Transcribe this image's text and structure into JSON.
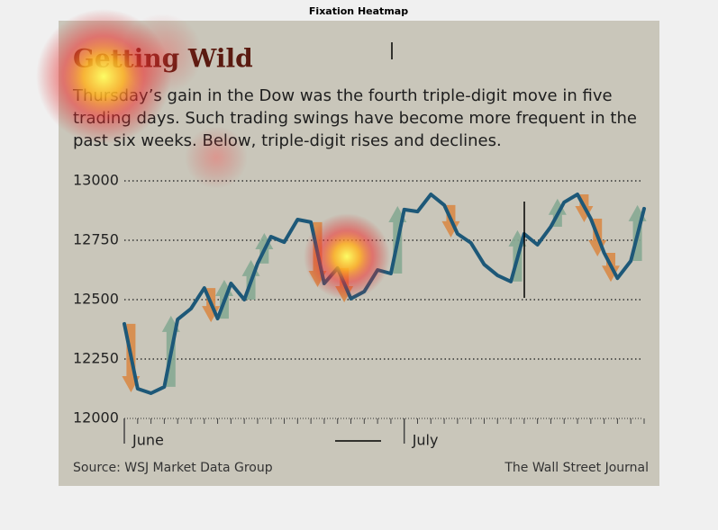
{
  "page_title": "Fixation Heatmap",
  "chart_data": {
    "type": "line",
    "title": "Getting Wild",
    "subtitle": [
      "Thursday’s gain in the Dow was the fourth triple-digit move in five",
      "trading days. Such trading swings have become more frequent in the",
      "past six weeks. Below, triple-digit rises and declines."
    ],
    "source": "Source: WSJ Market Data Group",
    "publisher": "The Wall Street Journal",
    "categories": [
      "June",
      null,
      null,
      null,
      null,
      null,
      null,
      null,
      null,
      null,
      null,
      null,
      null,
      null,
      null,
      null,
      null,
      null,
      null,
      null,
      null,
      "July",
      null,
      null,
      null,
      null,
      null,
      null,
      null,
      null,
      null,
      null,
      null,
      null,
      null,
      null,
      null,
      null,
      null,
      null
    ],
    "values": [
      12398,
      12125,
      12106,
      12133,
      12417,
      12462,
      12549,
      12420,
      12568,
      12500,
      12652,
      12765,
      12742,
      12837,
      12826,
      12568,
      12633,
      12504,
      12534,
      12625,
      12610,
      12879,
      12871,
      12943,
      12898,
      12777,
      12739,
      12648,
      12602,
      12576,
      12777,
      12731,
      12807,
      12910,
      12943,
      12841,
      12697,
      12590,
      12663,
      12883
    ],
    "color": "#1d5878",
    "up_color": "#86a894",
    "down_color": "#d88a48",
    "ylim": [
      12000,
      13000
    ],
    "yticks": [
      12000,
      12250,
      12500,
      12750,
      13000
    ],
    "grid": true
  }
}
